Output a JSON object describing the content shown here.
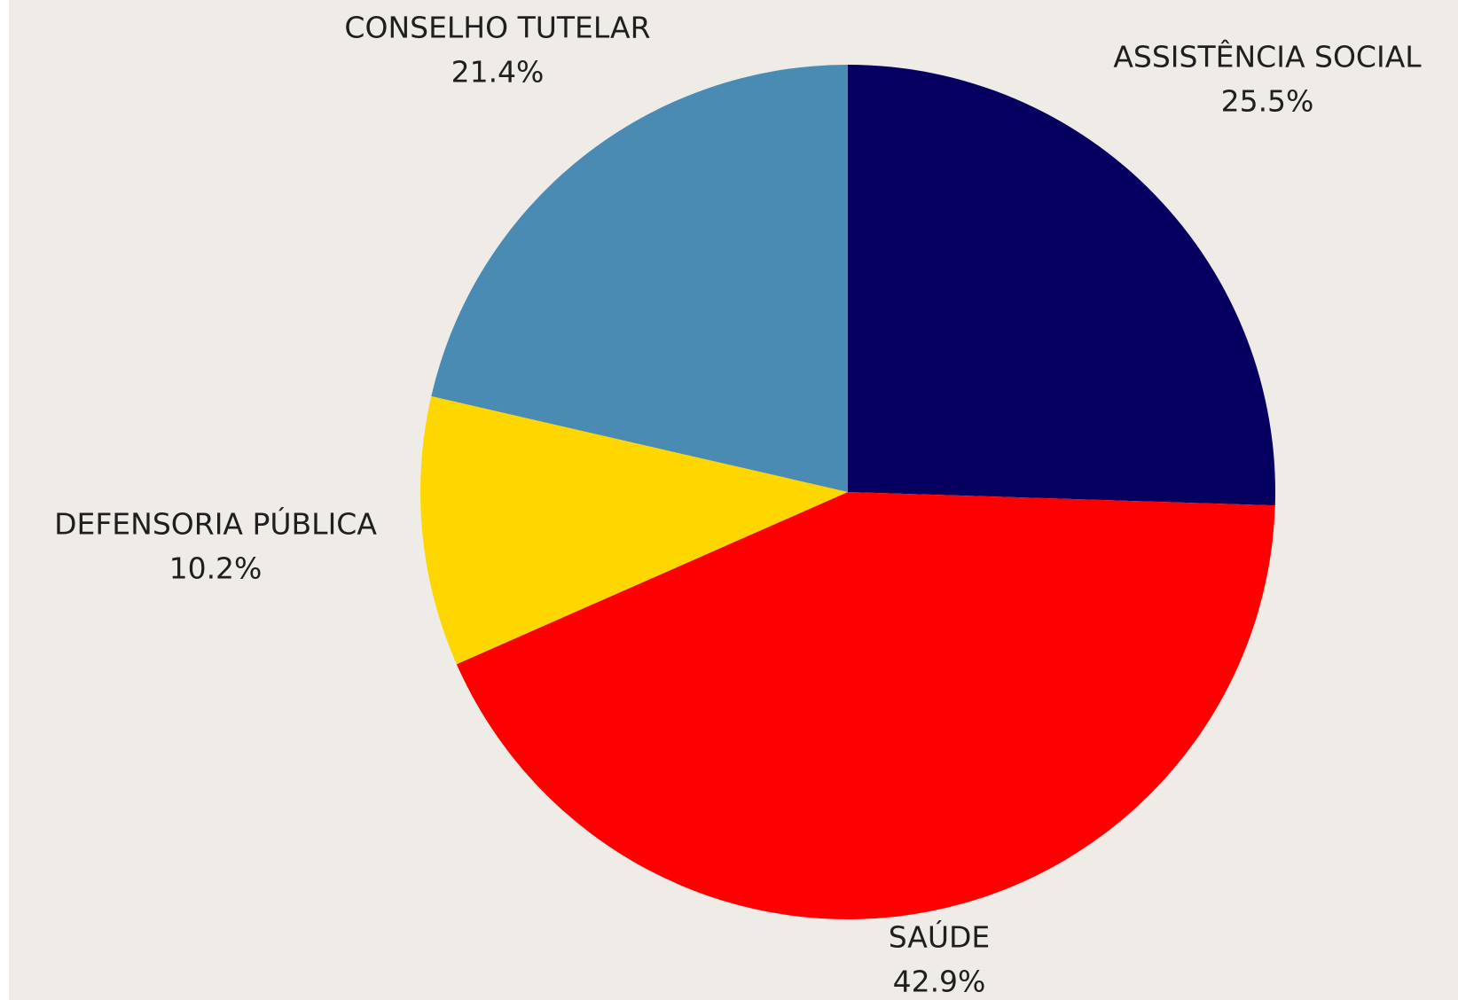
{
  "chart_data": {
    "type": "pie",
    "categories": [
      "ASSISTÊNCIA SOCIAL",
      "SAÚDE",
      "DEFENSORIA PÚBLICA",
      "CONSELHO TUTELAR"
    ],
    "values": [
      25.5,
      42.9,
      10.2,
      21.4
    ],
    "value_labels": [
      "25.5%",
      "42.9%",
      "10.2%",
      "21.4%"
    ],
    "colors": [
      "#050060",
      "#ff0000",
      "#ffd700",
      "#4a8bb3"
    ]
  }
}
